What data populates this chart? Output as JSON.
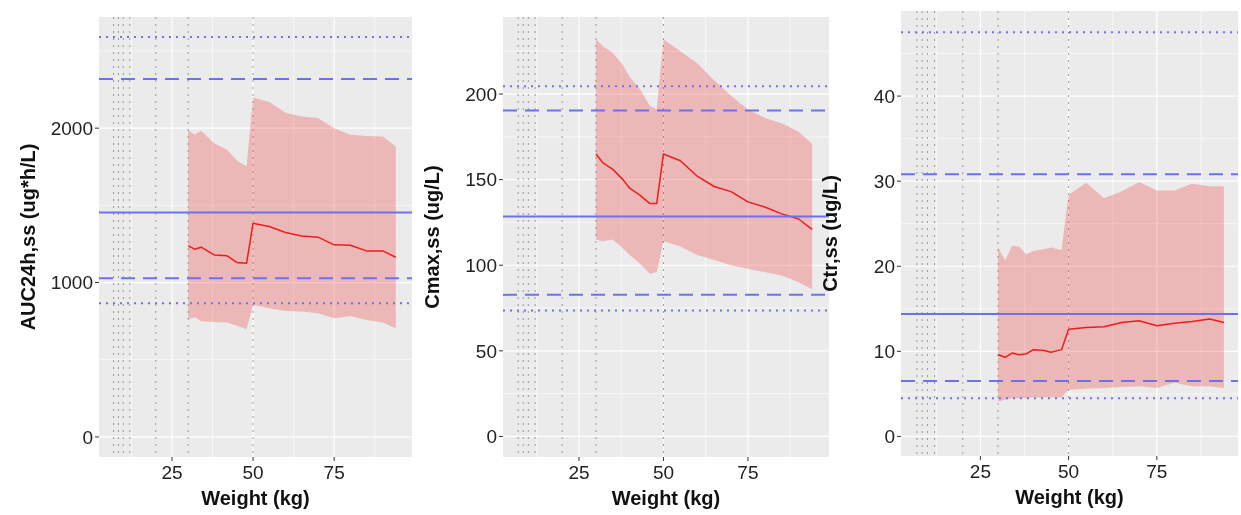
{
  "chart_data": [
    {
      "type": "line",
      "xlabel": "Weight (kg)",
      "ylabel": "AUC24h,ss (ug*h/L)",
      "xlim": [
        2.5,
        99
      ],
      "ylim": [
        -130,
        2720
      ],
      "xticks": [
        {
          "value": 12.5,
          "label": null
        },
        25,
        {
          "value": 37.5,
          "label": null
        },
        50,
        {
          "value": 62.5,
          "label": null
        },
        75,
        {
          "value": 87.5,
          "label": null
        }
      ],
      "yticks": [
        0,
        {
          "value": 500,
          "label": null
        },
        1000,
        {
          "value": 1500,
          "label": null
        },
        2000,
        {
          "value": 2500,
          "label": null
        }
      ],
      "grid": true,
      "series": [
        {
          "color": "#ee1c1c",
          "x": [
            30,
            32,
            34,
            38,
            42,
            45,
            48,
            50,
            55,
            60,
            65,
            70,
            75,
            80,
            85,
            90,
            94
          ],
          "values": [
            1238,
            1216,
            1229,
            1179,
            1173,
            1130,
            1125,
            1384,
            1363,
            1324,
            1302,
            1294,
            1244,
            1242,
            1205,
            1205,
            1164
          ],
          "lower": [
            762,
            775,
            750,
            745,
            741,
            720,
            698,
            855,
            834,
            816,
            812,
            801,
            769,
            784,
            758,
            741,
            704
          ],
          "upper": [
            1989,
            1957,
            1983,
            1903,
            1860,
            1790,
            1752,
            2199,
            2170,
            2100,
            2075,
            2065,
            2000,
            1957,
            1950,
            1946,
            1881
          ]
        }
      ],
      "ref_lines": [
        {
          "axis": "y",
          "value": 2590,
          "color": "#7070ee",
          "line_style": "dotted"
        },
        {
          "axis": "y",
          "value": 2318,
          "color": "#7070ee",
          "line_style": "dashed"
        },
        {
          "axis": "y",
          "value": 1454,
          "color": "#7070ee",
          "line_style": "solid"
        },
        {
          "axis": "y",
          "value": 1028,
          "color": "#7070ee",
          "line_style": "dashed"
        },
        {
          "axis": "y",
          "value": 866,
          "color": "#7070ee",
          "line_style": "dotted"
        },
        {
          "axis": "x",
          "value": 7,
          "color": "#999999",
          "line_style": "dotted"
        },
        {
          "axis": "x",
          "value": 8.5,
          "color": "#999999",
          "line_style": "dotted"
        },
        {
          "axis": "x",
          "value": 10,
          "color": "#999999",
          "line_style": "dotted"
        },
        {
          "axis": "x",
          "value": 12,
          "color": "#999999",
          "line_style": "dotted"
        },
        {
          "axis": "x",
          "value": 20,
          "color": "#999999",
          "line_style": "dotted"
        },
        {
          "axis": "x",
          "value": 30,
          "color": "#999999",
          "line_style": "dotted"
        },
        {
          "axis": "x",
          "value": 50,
          "color": "#999999",
          "line_style": "dotted"
        }
      ]
    },
    {
      "type": "line",
      "xlabel": "Weight (kg)",
      "ylabel": "Cmax,ss (ug/L)",
      "xlim": [
        2.5,
        99
      ],
      "ylim": [
        -12,
        245
      ],
      "xticks": [
        {
          "value": 12.5,
          "label": null
        },
        25,
        {
          "value": 37.5,
          "label": null
        },
        50,
        {
          "value": 62.5,
          "label": null
        },
        75,
        {
          "value": 87.5,
          "label": null
        }
      ],
      "yticks": [
        0,
        {
          "value": 25,
          "label": null
        },
        50,
        {
          "value": 75,
          "label": null
        },
        100,
        {
          "value": 125,
          "label": null
        },
        150,
        {
          "value": 175,
          "label": null
        },
        200,
        {
          "value": 225,
          "label": null
        }
      ],
      "grid": true,
      "series": [
        {
          "color": "#ee1c1c",
          "x": [
            30,
            32,
            35,
            38,
            40,
            43,
            46,
            48,
            50,
            55,
            60,
            65,
            70,
            75,
            80,
            85,
            90,
            94
          ],
          "values": [
            165,
            160,
            156,
            150,
            145,
            141,
            136,
            136,
            165,
            161,
            152,
            146,
            143,
            137,
            134,
            130,
            127,
            121
          ],
          "lower": [
            115,
            114,
            115,
            110,
            106,
            101,
            95,
            96,
            114,
            111,
            106,
            103,
            100,
            98,
            96,
            94,
            90,
            86
          ],
          "upper": [
            232,
            228,
            224,
            217,
            210,
            203,
            193,
            191,
            232,
            225,
            218,
            208,
            199,
            191,
            186,
            183,
            178,
            171
          ]
        }
      ],
      "ref_lines": [
        {
          "axis": "y",
          "value": 204.5,
          "color": "#7070ee",
          "line_style": "dotted"
        },
        {
          "axis": "y",
          "value": 190.4,
          "color": "#7070ee",
          "line_style": "dashed"
        },
        {
          "axis": "y",
          "value": 128.5,
          "color": "#7070ee",
          "line_style": "solid"
        },
        {
          "axis": "y",
          "value": 82.7,
          "color": "#7070ee",
          "line_style": "dashed"
        },
        {
          "axis": "y",
          "value": 73.5,
          "color": "#7070ee",
          "line_style": "dotted"
        },
        {
          "axis": "x",
          "value": 7,
          "color": "#999999",
          "line_style": "dotted"
        },
        {
          "axis": "x",
          "value": 8.5,
          "color": "#999999",
          "line_style": "dotted"
        },
        {
          "axis": "x",
          "value": 10,
          "color": "#999999",
          "line_style": "dotted"
        },
        {
          "axis": "x",
          "value": 12,
          "color": "#999999",
          "line_style": "dotted"
        },
        {
          "axis": "x",
          "value": 20,
          "color": "#999999",
          "line_style": "dotted"
        },
        {
          "axis": "x",
          "value": 30,
          "color": "#999999",
          "line_style": "dotted"
        },
        {
          "axis": "x",
          "value": 50,
          "color": "#999999",
          "line_style": "dotted"
        }
      ]
    },
    {
      "type": "line",
      "xlabel": "Weight (kg)",
      "ylabel": "Ctr,ss (ug/L)",
      "xlim": [
        2.5,
        98
      ],
      "ylim": [
        -2.3,
        50
      ],
      "xticks": [
        {
          "value": 12.5,
          "label": null
        },
        25,
        {
          "value": 37.5,
          "label": null
        },
        50,
        {
          "value": 62.5,
          "label": null
        },
        75,
        {
          "value": 87.5,
          "label": null
        }
      ],
      "yticks": [
        0,
        {
          "value": 5,
          "label": null
        },
        10,
        {
          "value": 15,
          "label": null
        },
        20,
        {
          "value": 25,
          "label": null
        },
        30,
        {
          "value": 35,
          "label": null
        },
        40,
        {
          "value": 45,
          "label": null
        }
      ],
      "grid": true,
      "series": [
        {
          "color": "#ee1c1c",
          "x": [
            30,
            32,
            34,
            36,
            38,
            40,
            43,
            45,
            48,
            50,
            55,
            60,
            65,
            70,
            75,
            80,
            85,
            90,
            94
          ],
          "values": [
            9.6,
            9.3,
            9.8,
            9.6,
            9.7,
            10.2,
            10.1,
            9.9,
            10.2,
            12.6,
            12.8,
            12.9,
            13.4,
            13.6,
            13.0,
            13.3,
            13.5,
            13.8,
            13.4
          ],
          "lower": [
            4.1,
            4.3,
            4.5,
            4.5,
            4.5,
            4.6,
            4.6,
            4.6,
            4.6,
            5.5,
            5.6,
            5.7,
            5.8,
            5.9,
            5.7,
            6.3,
            5.9,
            5.9,
            5.7
          ],
          "upper": [
            22.2,
            20.7,
            22.4,
            22.3,
            21.4,
            21.8,
            22.0,
            22.2,
            21.9,
            28.4,
            29.8,
            28.0,
            28.8,
            29.9,
            28.9,
            28.9,
            29.7,
            29.4,
            29.4
          ]
        }
      ],
      "ref_lines": [
        {
          "axis": "y",
          "value": 47.5,
          "color": "#7070ee",
          "line_style": "dotted"
        },
        {
          "axis": "y",
          "value": 30.8,
          "color": "#7070ee",
          "line_style": "dashed"
        },
        {
          "axis": "y",
          "value": 14.4,
          "color": "#7070ee",
          "line_style": "solid"
        },
        {
          "axis": "y",
          "value": 6.5,
          "color": "#7070ee",
          "line_style": "dashed"
        },
        {
          "axis": "y",
          "value": 4.5,
          "color": "#7070ee",
          "line_style": "dotted"
        },
        {
          "axis": "x",
          "value": 7,
          "color": "#999999",
          "line_style": "dotted"
        },
        {
          "axis": "x",
          "value": 8.5,
          "color": "#999999",
          "line_style": "dotted"
        },
        {
          "axis": "x",
          "value": 10,
          "color": "#999999",
          "line_style": "dotted"
        },
        {
          "axis": "x",
          "value": 12,
          "color": "#999999",
          "line_style": "dotted"
        },
        {
          "axis": "x",
          "value": 20,
          "color": "#999999",
          "line_style": "dotted"
        },
        {
          "axis": "x",
          "value": 30,
          "color": "#999999",
          "line_style": "dotted"
        },
        {
          "axis": "x",
          "value": 50,
          "color": "#999999",
          "line_style": "dotted"
        }
      ]
    }
  ]
}
